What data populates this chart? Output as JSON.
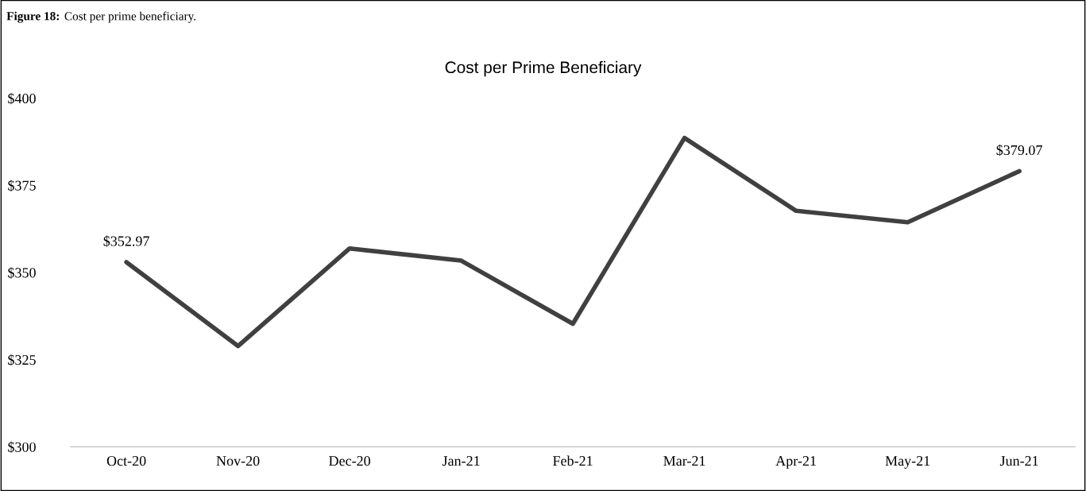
{
  "chart_data": {
    "type": "line",
    "title": "Cost per Prime Beneficiary",
    "annotations": [
      "Figure 18:",
      "Cost per prime beneficiary."
    ],
    "categories": [
      "Oct-20",
      "Nov-20",
      "Dec-20",
      "Jan-21",
      "Feb-21",
      "Mar-21",
      "Apr-21",
      "May-21",
      "Jun-21"
    ],
    "series": [
      {
        "color": "#404040",
        "values": [
          352.97,
          328.9,
          356.9,
          353.4,
          335.3,
          388.6,
          367.7,
          364.4,
          379.07
        ],
        "value_labels": [
          "$352.97",
          null,
          null,
          null,
          null,
          null,
          null,
          null,
          "$379.07"
        ]
      }
    ],
    "ylim": [
      300,
      400
    ],
    "yticks": [
      {
        "value": 300,
        "label": "$300"
      },
      {
        "value": 325,
        "label": "$325"
      },
      {
        "value": 350,
        "label": "$350"
      },
      {
        "value": 375,
        "label": "$375"
      },
      {
        "value": 400,
        "label": "$400"
      }
    ],
    "grid": false,
    "legend": false,
    "marker": "none",
    "line_style": "solid"
  }
}
